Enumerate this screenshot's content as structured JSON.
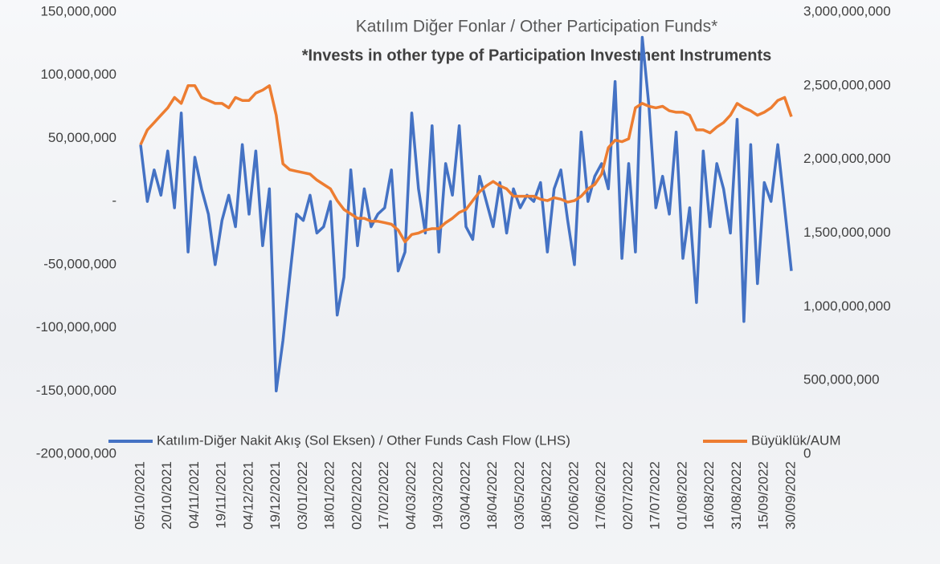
{
  "chart_data": {
    "type": "line",
    "title": "Katılım Diğer Fonlar / Other Participation Funds*",
    "subtitle": "*Invests in other type of Participation Investment Instruments",
    "categories": [
      "05/10/2021",
      null,
      null,
      null,
      "20/10/2021",
      null,
      null,
      null,
      "04/11/2021",
      null,
      null,
      null,
      "19/11/2021",
      null,
      null,
      null,
      "04/12/2021",
      null,
      null,
      null,
      "19/12/2021",
      null,
      null,
      null,
      "03/01/2022",
      null,
      null,
      null,
      "18/01/2022",
      null,
      null,
      null,
      "02/02/2022",
      null,
      null,
      null,
      "17/02/2022",
      null,
      null,
      null,
      "04/03/2022",
      null,
      null,
      null,
      "19/03/2022",
      null,
      null,
      null,
      "03/04/2022",
      null,
      null,
      null,
      "18/04/2022",
      null,
      null,
      null,
      "03/05/2022",
      null,
      null,
      null,
      "18/05/2022",
      null,
      null,
      null,
      "02/06/2022",
      null,
      null,
      null,
      "17/06/2022",
      null,
      null,
      null,
      "02/07/2022",
      null,
      null,
      null,
      "17/07/2022",
      null,
      null,
      null,
      "01/08/2022",
      null,
      null,
      null,
      "16/08/2022",
      null,
      null,
      null,
      "31/08/2022",
      null,
      null,
      null,
      "15/09/2022",
      null,
      null,
      null,
      "30/09/2022"
    ],
    "series": [
      {
        "name": "Katılım-Diğer Nakit Akış (Sol Eksen) / Other Funds Cash Flow (LHS)",
        "color": "#4472c4",
        "axis": "y",
        "values": [
          45000000,
          0,
          25000000,
          5000000,
          40000000,
          -5000000,
          70000000,
          -40000000,
          35000000,
          10000000,
          -10000000,
          -50000000,
          -15000000,
          5000000,
          -20000000,
          45000000,
          -10000000,
          40000000,
          -35000000,
          10000000,
          -150000000,
          -110000000,
          -60000000,
          -10000000,
          -15000000,
          5000000,
          -25000000,
          -20000000,
          0,
          -90000000,
          -60000000,
          25000000,
          -35000000,
          10000000,
          -20000000,
          -10000000,
          -5000000,
          25000000,
          -55000000,
          -40000000,
          70000000,
          10000000,
          -25000000,
          60000000,
          -40000000,
          30000000,
          5000000,
          60000000,
          -20000000,
          -30000000,
          20000000,
          0,
          -20000000,
          15000000,
          -25000000,
          10000000,
          -5000000,
          5000000,
          0,
          15000000,
          -40000000,
          10000000,
          25000000,
          -15000000,
          -50000000,
          55000000,
          0,
          20000000,
          30000000,
          10000000,
          95000000,
          -45000000,
          30000000,
          -40000000,
          130000000,
          75000000,
          -5000000,
          20000000,
          -10000000,
          55000000,
          -45000000,
          -5000000,
          -80000000,
          40000000,
          -20000000,
          30000000,
          10000000,
          -25000000,
          65000000,
          -95000000,
          45000000,
          -65000000,
          15000000,
          0,
          45000000,
          -5000000,
          -55000000
        ]
      },
      {
        "name": "Büyüklük/AUM",
        "color": "#ed7d31",
        "axis": "y2",
        "values": [
          2100000000,
          2200000000,
          2250000000,
          2300000000,
          2350000000,
          2420000000,
          2380000000,
          2500000000,
          2500000000,
          2420000000,
          2400000000,
          2380000000,
          2380000000,
          2350000000,
          2420000000,
          2400000000,
          2400000000,
          2450000000,
          2470000000,
          2500000000,
          2300000000,
          1970000000,
          1930000000,
          1920000000,
          1910000000,
          1900000000,
          1860000000,
          1830000000,
          1800000000,
          1720000000,
          1660000000,
          1630000000,
          1600000000,
          1600000000,
          1580000000,
          1580000000,
          1570000000,
          1560000000,
          1520000000,
          1440000000,
          1490000000,
          1500000000,
          1520000000,
          1530000000,
          1530000000,
          1570000000,
          1600000000,
          1640000000,
          1660000000,
          1720000000,
          1780000000,
          1820000000,
          1850000000,
          1820000000,
          1800000000,
          1750000000,
          1750000000,
          1750000000,
          1750000000,
          1730000000,
          1720000000,
          1740000000,
          1730000000,
          1710000000,
          1720000000,
          1750000000,
          1800000000,
          1830000000,
          1900000000,
          2080000000,
          2130000000,
          2120000000,
          2140000000,
          2350000000,
          2380000000,
          2360000000,
          2350000000,
          2360000000,
          2330000000,
          2320000000,
          2320000000,
          2300000000,
          2200000000,
          2200000000,
          2180000000,
          2220000000,
          2250000000,
          2300000000,
          2380000000,
          2350000000,
          2330000000,
          2300000000,
          2320000000,
          2350000000,
          2400000000,
          2420000000,
          2290000000
        ]
      }
    ],
    "ylim": [
      -200000000,
      150000000
    ],
    "yticks": [
      {
        "value": -200000000,
        "label": "-200,000,000"
      },
      {
        "value": -150000000,
        "label": "-150,000,000"
      },
      {
        "value": -100000000,
        "label": "-100,000,000"
      },
      {
        "value": -50000000,
        "label": "-50,000,000"
      },
      {
        "value": 0,
        "label": "-"
      },
      {
        "value": 50000000,
        "label": "50,000,000"
      },
      {
        "value": 100000000,
        "label": "100,000,000"
      },
      {
        "value": 150000000,
        "label": "150,000,000"
      }
    ],
    "y2lim": [
      0,
      3000000000
    ],
    "y2ticks": [
      0,
      {
        "value": 500000000,
        "label": "500,000,000"
      },
      {
        "value": 1000000000,
        "label": "1,000,000,000"
      },
      {
        "value": 1500000000,
        "label": "1,500,000,000"
      },
      {
        "value": 2000000000,
        "label": "2,000,000,000"
      },
      {
        "value": 2500000000,
        "label": "2,500,000,000"
      },
      {
        "value": 3000000000,
        "label": "3,000,000,000"
      }
    ],
    "legend": "bottom",
    "grid": false
  }
}
